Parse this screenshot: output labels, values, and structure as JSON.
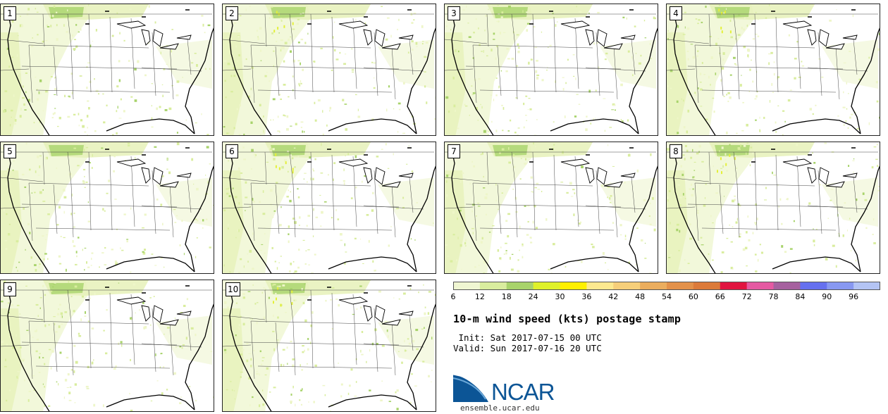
{
  "panels": [
    {
      "number": "1"
    },
    {
      "number": "2"
    },
    {
      "number": "3"
    },
    {
      "number": "4"
    },
    {
      "number": "5"
    },
    {
      "number": "6"
    },
    {
      "number": "7"
    },
    {
      "number": "8"
    },
    {
      "number": "9"
    },
    {
      "number": "10"
    }
  ],
  "colorbar": {
    "ticks": [
      "6",
      "12",
      "18",
      "24",
      "30",
      "36",
      "42",
      "48",
      "54",
      "60",
      "66",
      "72",
      "78",
      "84",
      "90",
      "96"
    ],
    "colors": [
      "#f0f6d2",
      "#d9ed9e",
      "#a8d36b",
      "#dff12a",
      "#fff000",
      "#fde98f",
      "#f6cf7a",
      "#ebad5e",
      "#e3914a",
      "#dc7a3a",
      "#e11540",
      "#e55aa2",
      "#a6619f",
      "#6670ef",
      "#8898f1",
      "#b4c4f4"
    ]
  },
  "legend": {
    "title": "10-m wind speed (kts) postage stamp",
    "init": " Init: Sat 2017-07-15 00 UTC",
    "valid": "Valid: Sun 2017-07-16 20 UTC"
  },
  "logo": {
    "text": "NCAR",
    "url": "ensemble.ucar.edu",
    "color": "#0c5596"
  }
}
